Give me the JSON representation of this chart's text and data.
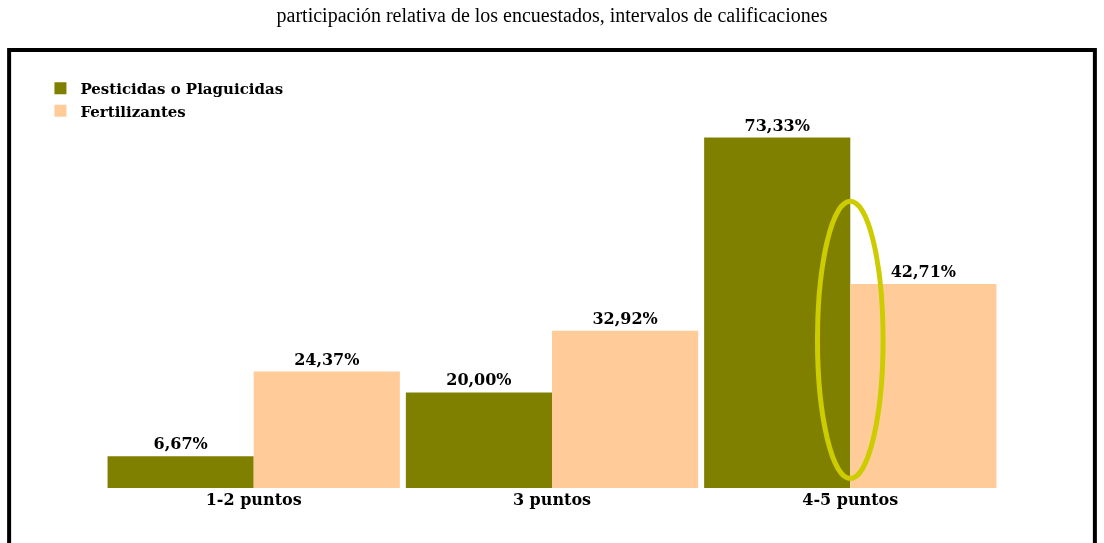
{
  "chart_data": {
    "type": "bar",
    "title": "participación relativa de los encuestados, intervalos de calificaciones",
    "categories": [
      "1-2 puntos",
      "3 puntos",
      "4-5 puntos"
    ],
    "series": [
      {
        "name": "Pesticidas o Plaguicidas",
        "color": "#808000",
        "values": [
          6.67,
          20.0,
          73.33
        ],
        "value_labels": [
          "6,67%",
          "20,00%",
          "73,33%"
        ]
      },
      {
        "name": "Fertilizantes",
        "color": "#ffcc99",
        "values": [
          24.37,
          32.92,
          42.71
        ],
        "value_labels": [
          "24,37%",
          "32,92%",
          "42,71%"
        ]
      }
    ],
    "legend": "top left"
  }
}
